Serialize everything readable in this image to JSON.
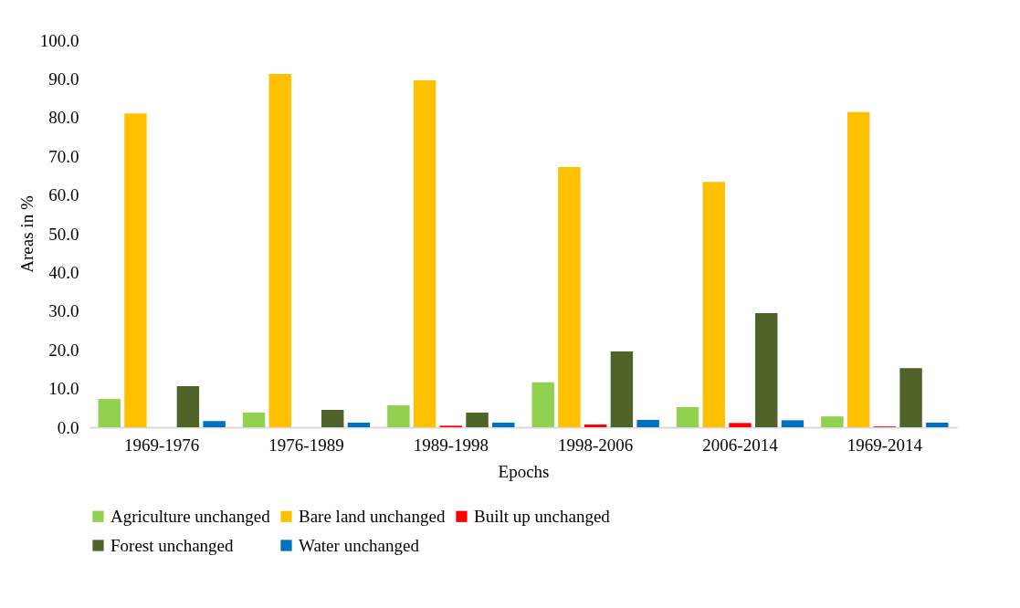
{
  "chart_data": {
    "type": "bar",
    "xlabel": "Epochs",
    "ylabel": "Areas in %",
    "categories": [
      "1969-1976",
      "1976-1989",
      "1989-1998",
      "1998-2006",
      "2006-2014",
      "1969-2014"
    ],
    "series": [
      {
        "name": "Agriculture unchanged",
        "color": "#92d050",
        "values": [
          7.3,
          3.8,
          5.7,
          11.6,
          5.2,
          2.8
        ]
      },
      {
        "name": "Bare land unchanged",
        "color": "#ffc000",
        "values": [
          81.1,
          91.3,
          89.6,
          67.2,
          63.4,
          81.4
        ]
      },
      {
        "name": "Built up unchanged",
        "color": "#ff0000",
        "values": [
          null,
          null,
          0.4,
          0.7,
          1.1,
          0.2
        ]
      },
      {
        "name": "Forest unchanged",
        "color": "#4f6228",
        "values": [
          10.6,
          4.5,
          3.8,
          19.6,
          29.5,
          15.3
        ]
      },
      {
        "name": "Water unchanged",
        "color": "#0070c0",
        "values": [
          1.6,
          1.2,
          1.2,
          1.9,
          1.8,
          1.2
        ]
      }
    ],
    "ylim": [
      0,
      100
    ],
    "yticks": [
      {
        "value": 0,
        "label": "0.0"
      },
      {
        "value": 10,
        "label": "10.0"
      },
      {
        "value": 20,
        "label": "20.0"
      },
      {
        "value": 30,
        "label": "30.0"
      },
      {
        "value": 40,
        "label": "40.0"
      },
      {
        "value": 50,
        "label": "50.0"
      },
      {
        "value": 60,
        "label": "60.0"
      },
      {
        "value": 70,
        "label": "70.0"
      },
      {
        "value": 80,
        "label": "80.0"
      },
      {
        "value": 90,
        "label": "90.0"
      },
      {
        "value": 100,
        "label": "100.0"
      }
    ],
    "legend": "bottom"
  }
}
